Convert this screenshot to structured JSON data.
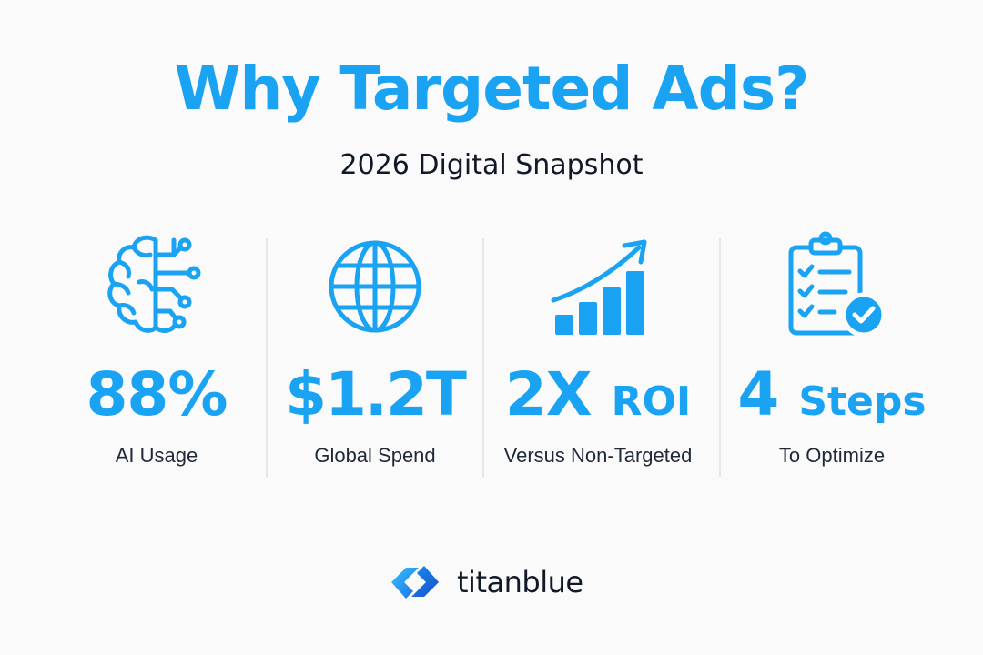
{
  "header": {
    "title": "Why Targeted Ads?",
    "subtitle": "2026 Digital Snapshot"
  },
  "stats": [
    {
      "icon": "brain-circuit-icon",
      "value": "88%",
      "label": "AI Usage"
    },
    {
      "icon": "globe-icon",
      "value": "$1.2T",
      "label": "Global Spend"
    },
    {
      "icon": "growth-chart-icon",
      "value_main": "2X",
      "value_suffix": "ROI",
      "label": "Versus Non-Targeted"
    },
    {
      "icon": "checklist-clipboard-icon",
      "value_main": "4",
      "value_suffix": "Steps",
      "label": "To Optimize"
    }
  ],
  "brand": {
    "name": "titanblue",
    "icon": "titanblue-logo-icon"
  },
  "colors": {
    "accent": "#1aa3f3",
    "text_dark": "#111827",
    "background": "#fafafa",
    "divider": "#e3e6ea"
  }
}
